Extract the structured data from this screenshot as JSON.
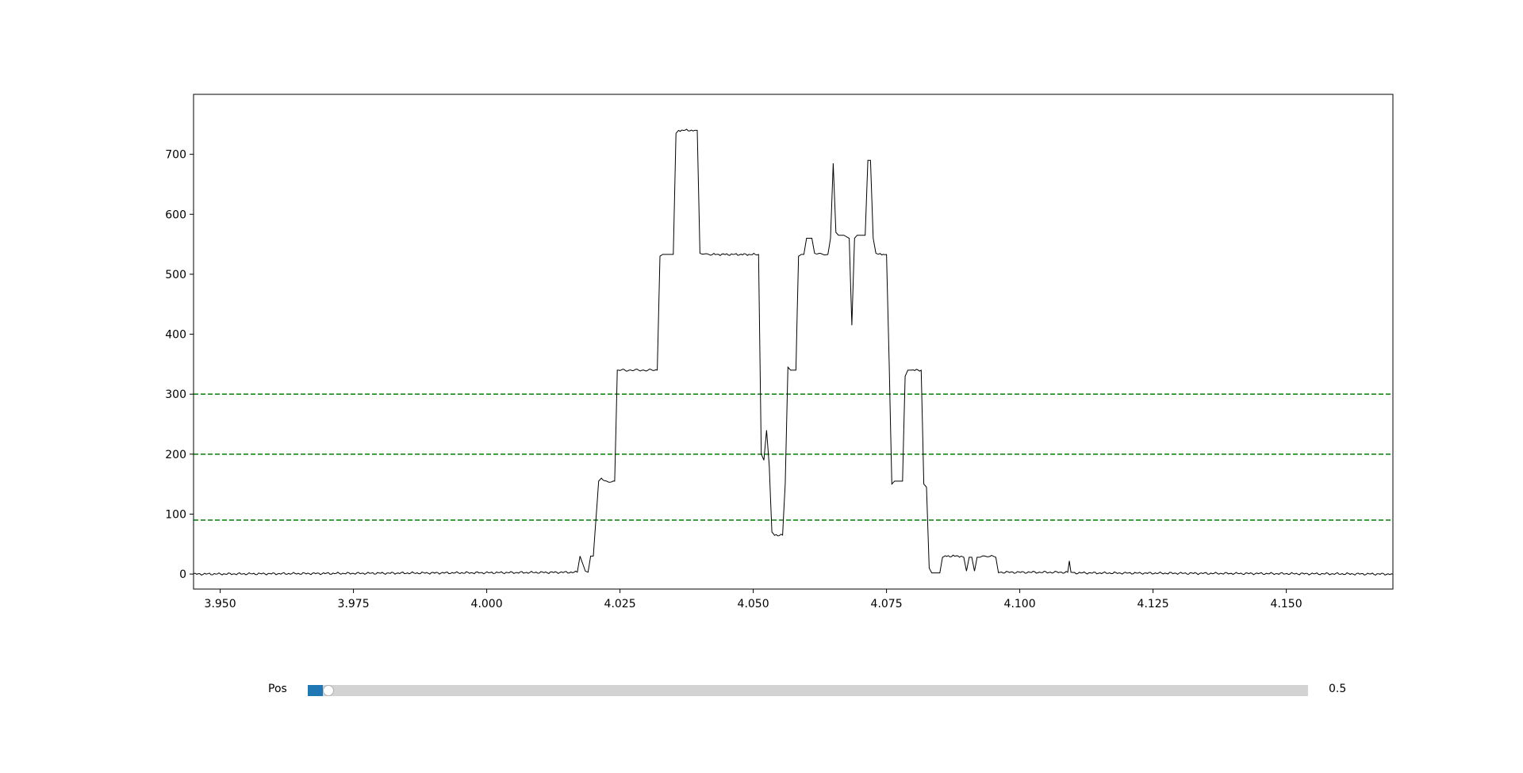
{
  "chart_data": {
    "type": "line",
    "title": "",
    "xlabel": "",
    "ylabel": "",
    "xlim": [
      3.945,
      4.17
    ],
    "ylim": [
      -25,
      800
    ],
    "x_ticks": [
      3.95,
      3.975,
      4.0,
      4.025,
      4.05,
      4.075,
      4.1,
      4.125,
      4.15
    ],
    "x_tick_labels": [
      "3.950",
      "3.975",
      "4.000",
      "4.025",
      "4.050",
      "4.075",
      "4.100",
      "4.125",
      "4.150"
    ],
    "y_ticks": [
      0,
      100,
      200,
      300,
      400,
      500,
      600,
      700
    ],
    "y_tick_labels": [
      "0",
      "100",
      "200",
      "300",
      "400",
      "500",
      "600",
      "700"
    ],
    "grid": false,
    "line_color": "#000000",
    "threshold_color": "#008000",
    "thresholds": [
      90,
      200,
      300
    ],
    "series": [
      {
        "x": [
          3.945,
          4.017,
          4.0175,
          4.0185,
          4.019,
          4.0195,
          4.02,
          4.021,
          4.0215,
          4.022,
          4.024,
          4.0245,
          4.025,
          4.032,
          4.0325,
          4.033,
          4.034,
          4.035,
          4.0355,
          4.036,
          4.039,
          4.0395,
          4.04,
          4.042,
          4.051,
          4.0515,
          4.052,
          4.0525,
          4.053,
          4.0535,
          4.054,
          4.0555,
          4.056,
          4.0565,
          4.057,
          4.058,
          4.0585,
          4.059,
          4.0595,
          4.06,
          4.0605,
          4.061,
          4.0615,
          4.062,
          4.064,
          4.0645,
          4.065,
          4.0655,
          4.066,
          4.0665,
          4.067,
          4.068,
          4.0685,
          4.069,
          4.0695,
          4.07,
          4.071,
          4.0715,
          4.072,
          4.0725,
          4.073,
          4.0735,
          4.075,
          4.0755,
          4.076,
          4.0765,
          4.077,
          4.078,
          4.0785,
          4.079,
          4.08,
          4.0815,
          4.082,
          4.0825,
          4.083,
          4.0835,
          4.084,
          4.085,
          4.0855,
          4.086,
          4.089,
          4.0895,
          4.09,
          4.0905,
          4.091,
          4.0915,
          4.092,
          4.0925,
          4.093,
          4.095,
          4.0955,
          4.096,
          4.109,
          4.1093,
          4.1096,
          4.11,
          4.17
        ],
        "y": [
          0,
          3,
          30,
          5,
          3,
          30,
          30,
          155,
          160,
          155,
          155,
          340,
          340,
          340,
          530,
          533,
          533,
          533,
          735,
          740,
          740,
          740,
          535,
          533,
          533,
          200,
          190,
          240,
          180,
          70,
          65,
          65,
          150,
          345,
          340,
          340,
          530,
          533,
          533,
          560,
          560,
          560,
          535,
          533,
          533,
          560,
          685,
          570,
          565,
          565,
          565,
          560,
          415,
          560,
          565,
          565,
          565,
          690,
          690,
          560,
          535,
          533,
          533,
          350,
          150,
          155,
          155,
          155,
          330,
          340,
          340,
          340,
          150,
          145,
          10,
          2,
          2,
          2,
          28,
          30,
          30,
          28,
          5,
          28,
          28,
          5,
          28,
          28,
          30,
          30,
          28,
          3,
          3,
          22,
          3,
          2,
          0
        ]
      }
    ]
  },
  "slider": {
    "label": "Pos",
    "value_text": "0.5",
    "fraction": 0.01,
    "fill_color": "#1f77b4",
    "track_color": "#d3d3d3"
  }
}
